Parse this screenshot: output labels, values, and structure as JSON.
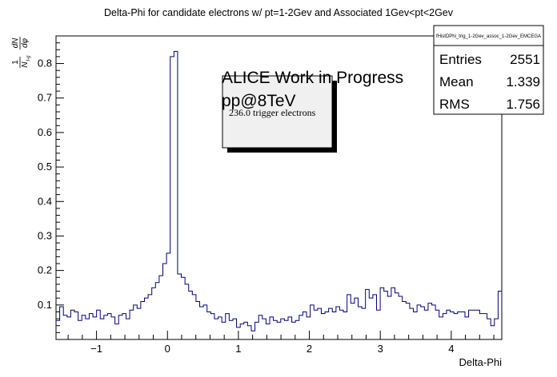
{
  "chart_data": {
    "type": "histogram",
    "title": "Delta-Phi for candidate electrons w/ pt=1-2Gev and Associated 1Gev<pt<2Gev",
    "xlabel": "Delta-Phi",
    "ylabel": {
      "num": "1",
      "den_main": "N",
      "den_sub": "t-g",
      "frac_num": "dN",
      "frac_den": "dφ"
    },
    "xlim": [
      -1.5708,
      4.7124
    ],
    "ylim": [
      0,
      0.88
    ],
    "xticks": [
      -1,
      0,
      1,
      2,
      3,
      4
    ],
    "xtick_labels": [
      "−1",
      "0",
      "1",
      "2",
      "3",
      "4"
    ],
    "yticks": [
      0.1,
      0.2,
      0.3,
      0.4,
      0.5,
      0.6,
      0.7,
      0.8
    ],
    "ytick_labels": [
      "0.1",
      "0.2",
      "0.3",
      "0.4",
      "0.5",
      "0.6",
      "0.7",
      "0.8"
    ],
    "grid": false,
    "line_color": "#000080",
    "values": [
      0.055,
      0.095,
      0.07,
      0.065,
      0.085,
      0.08,
      0.055,
      0.07,
      0.06,
      0.075,
      0.065,
      0.085,
      0.06,
      0.07,
      0.075,
      0.065,
      0.045,
      0.07,
      0.075,
      0.06,
      0.085,
      0.1,
      0.09,
      0.11,
      0.12,
      0.13,
      0.15,
      0.165,
      0.185,
      0.22,
      0.25,
      0.82,
      0.835,
      0.19,
      0.18,
      0.16,
      0.14,
      0.13,
      0.11,
      0.095,
      0.1,
      0.08,
      0.075,
      0.06,
      0.065,
      0.05,
      0.075,
      0.055,
      0.06,
      0.035,
      0.045,
      0.05,
      0.04,
      0.025,
      0.05,
      0.07,
      0.06,
      0.045,
      0.065,
      0.055,
      0.05,
      0.06,
      0.055,
      0.065,
      0.05,
      0.055,
      0.07,
      0.08,
      0.065,
      0.1,
      0.085,
      0.09,
      0.075,
      0.08,
      0.09,
      0.08,
      0.095,
      0.085,
      0.08,
      0.13,
      0.105,
      0.12,
      0.095,
      0.09,
      0.145,
      0.12,
      0.13,
      0.085,
      0.15,
      0.14,
      0.125,
      0.15,
      0.135,
      0.125,
      0.11,
      0.105,
      0.09,
      0.08,
      0.1,
      0.095,
      0.085,
      0.105,
      0.1,
      0.085,
      0.065,
      0.075,
      0.085,
      0.08,
      0.075,
      0.08,
      0.08,
      0.065,
      0.085,
      0.085,
      0.085,
      0.075,
      0.075,
      0.06,
      0.04,
      0.06,
      0.14
    ]
  },
  "stats": {
    "name": "fHistDPhi_trig_1-2Gev_assoc_1-2Gev_EMCEGA",
    "rows": [
      {
        "label": "Entries",
        "value": "2551"
      },
      {
        "label": "Mean",
        "value": "1.339"
      },
      {
        "label": "RMS",
        "value": "1.756"
      }
    ]
  },
  "annotations": {
    "line1": "ALICE Work in Progress",
    "line2": "pp@8TeV",
    "box_text": "236.0 trigger electrons"
  },
  "colors": {
    "hist": "#000080",
    "box_fill": "#f0f0f0",
    "shadow": "#000000"
  }
}
